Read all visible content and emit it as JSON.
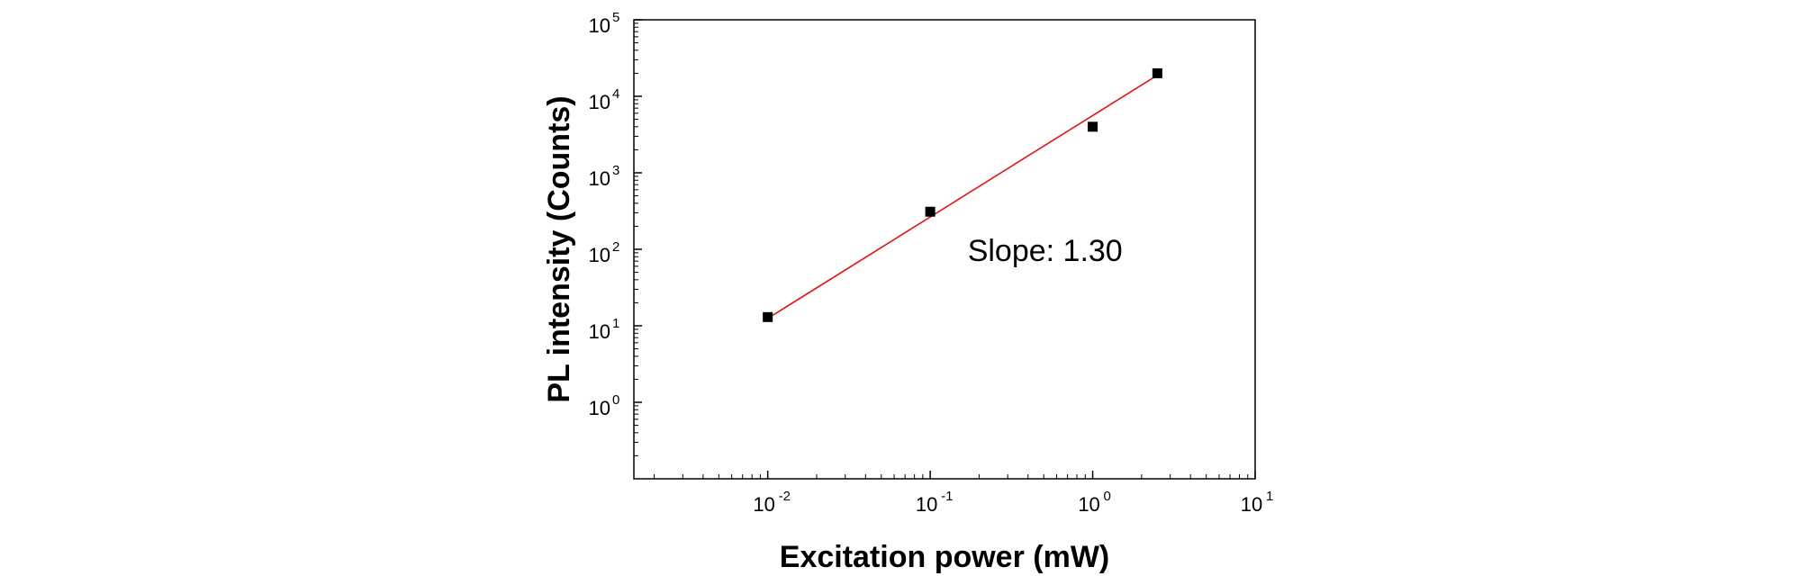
{
  "chart_data": {
    "type": "scatter",
    "title": "",
    "xlabel": "Excitation power (mW)",
    "ylabel": "PL intensity (Counts)",
    "x_scale": "log",
    "y_scale": "log",
    "xlim": [
      0.0015,
      10
    ],
    "ylim": [
      0.1,
      100000
    ],
    "x_ticks": [
      {
        "value": 0.01,
        "base": "10",
        "exp": "-2"
      },
      {
        "value": 0.1,
        "base": "10",
        "exp": "-1"
      },
      {
        "value": 1,
        "base": "10",
        "exp": "0"
      },
      {
        "value": 10,
        "base": "10",
        "exp": "1"
      }
    ],
    "y_ticks": [
      {
        "value": 1,
        "base": "10",
        "exp": "0"
      },
      {
        "value": 10,
        "base": "10",
        "exp": "1"
      },
      {
        "value": 100,
        "base": "10",
        "exp": "2"
      },
      {
        "value": 1000,
        "base": "10",
        "exp": "3"
      },
      {
        "value": 10000,
        "base": "10",
        "exp": "4"
      },
      {
        "value": 100000,
        "base": "10",
        "exp": "5"
      }
    ],
    "series": [
      {
        "marker": "square",
        "color": "#000000",
        "points": [
          {
            "x": 0.01,
            "y": 13
          },
          {
            "x": 0.1,
            "y": 310
          },
          {
            "x": 1,
            "y": 4000
          },
          {
            "x": 2.5,
            "y": 20000
          }
        ]
      }
    ],
    "fit_line": {
      "color": "#ff0000",
      "slope": 1.3,
      "x": [
        0.01,
        2.5
      ],
      "y": [
        12.5,
        18900
      ]
    },
    "annotations": [
      {
        "text": "Slope: 1.30"
      }
    ],
    "grid": false,
    "legend": "none"
  }
}
